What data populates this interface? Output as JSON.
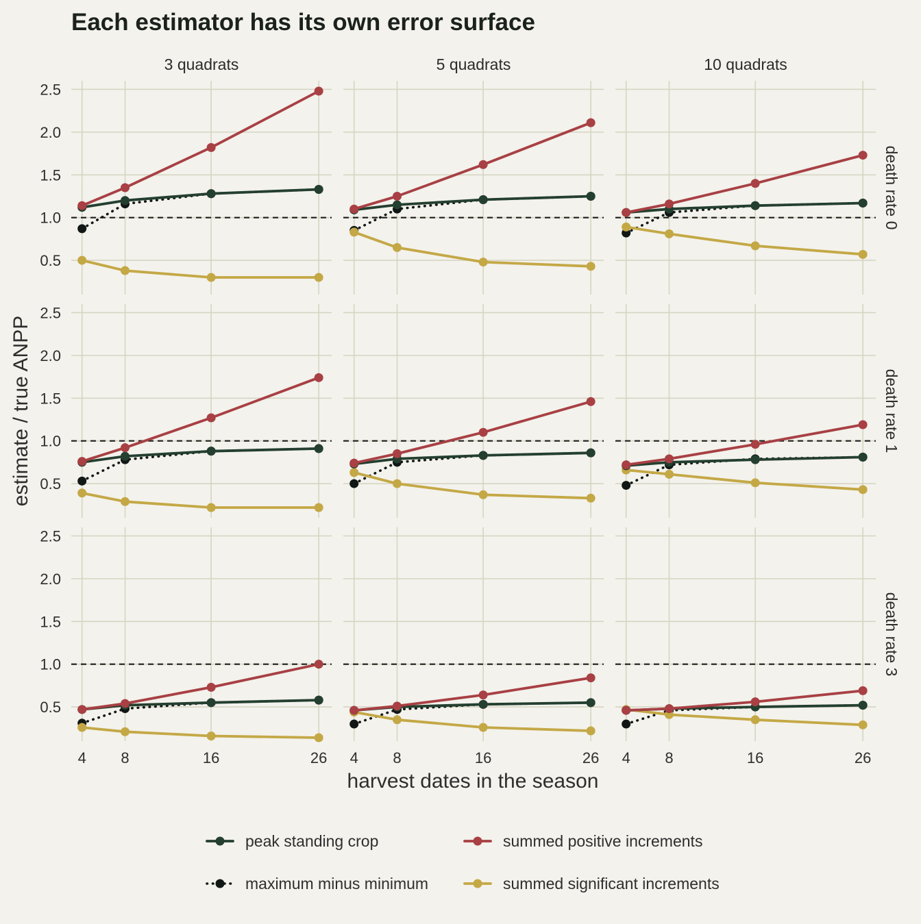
{
  "chart_data": {
    "type": "line",
    "title": "Each estimator has its own error surface",
    "xlabel": "harvest dates in the season",
    "ylabel": "estimate / true ANPP",
    "x": [
      4,
      8,
      16,
      26
    ],
    "x_ticks": [
      "4",
      "8",
      "16",
      "26"
    ],
    "y_ticks": [
      "0.5",
      "1.0",
      "1.5",
      "2.0",
      "2.5"
    ],
    "ylim": [
      0.1,
      2.6
    ],
    "xlim": [
      3,
      27.2
    ],
    "reference_line": 1.0,
    "columns": [
      "3 quadrats",
      "5 quadrats",
      "10 quadrats"
    ],
    "rows": [
      "death rate 0",
      "death rate 1",
      "death rate 3"
    ],
    "series_meta": [
      {
        "name": "peak standing crop",
        "color": "#243f2f",
        "dash": "solid"
      },
      {
        "name": "maximum minus minimum",
        "color": "#111714",
        "dash": "dotted"
      },
      {
        "name": "summed positive increments",
        "color": "#a84044",
        "dash": "solid"
      },
      {
        "name": "summed significant increments",
        "color": "#c4a846",
        "dash": "solid"
      }
    ],
    "panels": [
      {
        "row": "death rate 0",
        "col": "3 quadrats",
        "series": [
          {
            "name": "peak standing crop",
            "values": [
              1.12,
              1.2,
              1.28,
              1.33
            ]
          },
          {
            "name": "maximum minus minimum",
            "values": [
              0.87,
              1.16,
              1.28,
              1.33
            ]
          },
          {
            "name": "summed positive increments",
            "values": [
              1.14,
              1.35,
              1.82,
              2.48
            ]
          },
          {
            "name": "summed significant increments",
            "values": [
              0.5,
              0.38,
              0.3,
              0.3
            ]
          }
        ]
      },
      {
        "row": "death rate 0",
        "col": "5 quadrats",
        "series": [
          {
            "name": "peak standing crop",
            "values": [
              1.09,
              1.15,
              1.21,
              1.25
            ]
          },
          {
            "name": "maximum minus minimum",
            "values": [
              0.85,
              1.1,
              1.21,
              1.25
            ]
          },
          {
            "name": "summed positive increments",
            "values": [
              1.1,
              1.25,
              1.62,
              2.11
            ]
          },
          {
            "name": "summed significant increments",
            "values": [
              0.83,
              0.65,
              0.48,
              0.43
            ]
          }
        ]
      },
      {
        "row": "death rate 0",
        "col": "10 quadrats",
        "series": [
          {
            "name": "peak standing crop",
            "values": [
              1.06,
              1.1,
              1.14,
              1.17
            ]
          },
          {
            "name": "maximum minus minimum",
            "values": [
              0.82,
              1.06,
              1.14,
              1.17
            ]
          },
          {
            "name": "summed positive increments",
            "values": [
              1.06,
              1.16,
              1.4,
              1.73
            ]
          },
          {
            "name": "summed significant increments",
            "values": [
              0.89,
              0.81,
              0.67,
              0.57
            ]
          }
        ]
      },
      {
        "row": "death rate 1",
        "col": "3 quadrats",
        "series": [
          {
            "name": "peak standing crop",
            "values": [
              0.75,
              0.82,
              0.88,
              0.91
            ]
          },
          {
            "name": "maximum minus minimum",
            "values": [
              0.53,
              0.78,
              0.88,
              0.91
            ]
          },
          {
            "name": "summed positive increments",
            "values": [
              0.76,
              0.92,
              1.27,
              1.74
            ]
          },
          {
            "name": "summed significant increments",
            "values": [
              0.39,
              0.29,
              0.22,
              0.22
            ]
          }
        ]
      },
      {
        "row": "death rate 1",
        "col": "5 quadrats",
        "series": [
          {
            "name": "peak standing crop",
            "values": [
              0.73,
              0.79,
              0.83,
              0.86
            ]
          },
          {
            "name": "maximum minus minimum",
            "values": [
              0.5,
              0.75,
              0.83,
              0.86
            ]
          },
          {
            "name": "summed positive increments",
            "values": [
              0.74,
              0.85,
              1.1,
              1.46
            ]
          },
          {
            "name": "summed significant increments",
            "values": [
              0.63,
              0.5,
              0.37,
              0.33
            ]
          }
        ]
      },
      {
        "row": "death rate 1",
        "col": "10 quadrats",
        "series": [
          {
            "name": "peak standing crop",
            "values": [
              0.71,
              0.75,
              0.78,
              0.81
            ]
          },
          {
            "name": "maximum minus minimum",
            "values": [
              0.48,
              0.72,
              0.79,
              0.81
            ]
          },
          {
            "name": "summed positive increments",
            "values": [
              0.72,
              0.79,
              0.96,
              1.19
            ]
          },
          {
            "name": "summed significant increments",
            "values": [
              0.66,
              0.61,
              0.51,
              0.43
            ]
          }
        ]
      },
      {
        "row": "death rate 3",
        "col": "3 quadrats",
        "series": [
          {
            "name": "peak standing crop",
            "values": [
              0.47,
              0.52,
              0.55,
              0.58
            ]
          },
          {
            "name": "maximum minus minimum",
            "values": [
              0.31,
              0.48,
              0.55,
              0.58
            ]
          },
          {
            "name": "summed positive increments",
            "values": [
              0.47,
              0.54,
              0.73,
              1.0
            ]
          },
          {
            "name": "summed significant increments",
            "values": [
              0.26,
              0.21,
              0.16,
              0.14
            ]
          }
        ]
      },
      {
        "row": "death rate 3",
        "col": "5 quadrats",
        "series": [
          {
            "name": "peak standing crop",
            "values": [
              0.46,
              0.5,
              0.53,
              0.55
            ]
          },
          {
            "name": "maximum minus minimum",
            "values": [
              0.3,
              0.47,
              0.53,
              0.55
            ]
          },
          {
            "name": "summed positive increments",
            "values": [
              0.46,
              0.51,
              0.64,
              0.84
            ]
          },
          {
            "name": "summed significant increments",
            "values": [
              0.44,
              0.35,
              0.26,
              0.22
            ]
          }
        ]
      },
      {
        "row": "death rate 3",
        "col": "10 quadrats",
        "series": [
          {
            "name": "peak standing crop",
            "values": [
              0.46,
              0.48,
              0.5,
              0.52
            ]
          },
          {
            "name": "maximum minus minimum",
            "values": [
              0.3,
              0.46,
              0.5,
              0.52
            ]
          },
          {
            "name": "summed positive increments",
            "values": [
              0.46,
              0.48,
              0.56,
              0.69
            ]
          },
          {
            "name": "summed significant increments",
            "values": [
              0.47,
              0.41,
              0.35,
              0.29
            ]
          }
        ]
      }
    ],
    "legend": {
      "position": "bottom",
      "items": [
        "peak standing crop",
        "summed positive increments",
        "maximum minus minimum",
        "summed significant increments"
      ]
    }
  }
}
